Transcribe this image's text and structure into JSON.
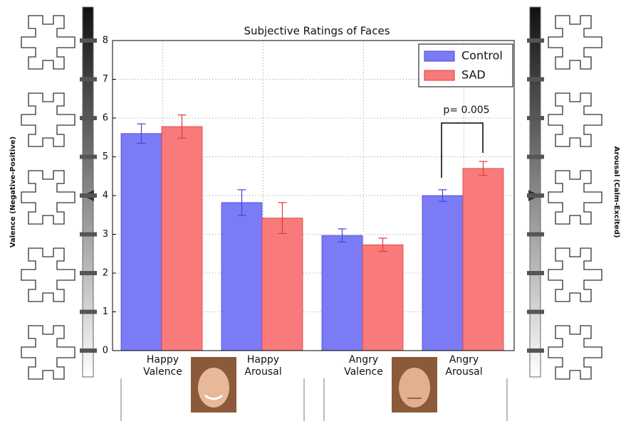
{
  "chart_data": {
    "type": "bar",
    "title": "Subjective Ratings of Faces",
    "categories": [
      "Happy Valence",
      "Happy Arousal",
      "Angry Valence",
      "Angry Arousal"
    ],
    "series": [
      {
        "name": "Control",
        "color": "#7b7bf5",
        "edge": "#4444dd",
        "values": [
          5.6,
          3.82,
          2.97,
          4.0
        ],
        "errors": [
          0.25,
          0.33,
          0.17,
          0.15
        ]
      },
      {
        "name": "SAD",
        "color": "#f87a7a",
        "edge": "#e03a3a",
        "values": [
          5.78,
          3.42,
          2.73,
          4.7
        ],
        "errors": [
          0.3,
          0.4,
          0.17,
          0.18
        ]
      }
    ],
    "ylim": [
      0,
      8
    ],
    "yticks": [
      0,
      1,
      2,
      3,
      4,
      5,
      6,
      7,
      8
    ],
    "grid": true,
    "legend": "upper right",
    "annotation": "p= 0.005",
    "left_label": "Valence (Negative-Positive)",
    "right_label": "Arousal (Calm-Excited)"
  }
}
